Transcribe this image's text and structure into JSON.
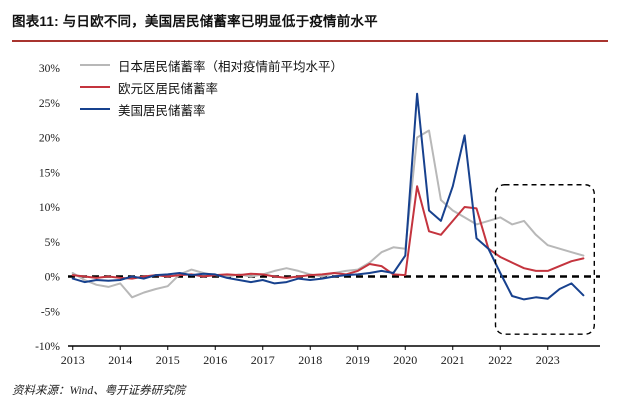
{
  "header": {
    "title": "图表11: 与日欧不同，美国居民储蓄率已明显低于疫情前水平"
  },
  "footer": {
    "source": "资料来源：Wind、粤开证券研究院"
  },
  "chart_data": {
    "type": "line",
    "title": "与日欧不同，美国居民储蓄率已明显低于疫情前水平",
    "xlabel": "",
    "ylabel": "",
    "ylim": [
      -10,
      30
    ],
    "grid": false,
    "legend_position": "top-left",
    "zero_line": true,
    "highlight_box": {
      "x0": 2021.9,
      "x1": 2023.98,
      "y0": -8.3,
      "y1": 13.2
    },
    "ytick_values": [
      30,
      25,
      20,
      15,
      10,
      5,
      0,
      -5,
      -10
    ],
    "ytick_labels": [
      "30%",
      "25%",
      "20%",
      "15%",
      "10%",
      "5%",
      "0%",
      "-5%",
      "-10%"
    ],
    "xtick_values": [
      2013,
      2014,
      2015,
      2016,
      2017,
      2018,
      2019,
      2020,
      2021,
      2022,
      2023
    ],
    "xtick_labels": [
      "2013",
      "2014",
      "2015",
      "2016",
      "2017",
      "2018",
      "2019",
      "2020",
      "2021",
      "2022",
      "2023"
    ],
    "x": [
      2013,
      2013.25,
      2013.5,
      2013.75,
      2014,
      2014.25,
      2014.5,
      2014.75,
      2015,
      2015.25,
      2015.5,
      2015.75,
      2016,
      2016.25,
      2016.5,
      2016.75,
      2017,
      2017.25,
      2017.5,
      2017.75,
      2018,
      2018.25,
      2018.5,
      2018.75,
      2019,
      2019.25,
      2019.5,
      2019.75,
      2020,
      2020.25,
      2020.5,
      2020.75,
      2021,
      2021.25,
      2021.5,
      2021.75,
      2022,
      2022.25,
      2022.5,
      2022.75,
      2023,
      2023.25,
      2023.5,
      2023.75
    ],
    "series": [
      {
        "name": "日本居民储蓄率（相对疫情前平均水平）",
        "color": "#b8b8b8",
        "values": [
          0.5,
          -0.5,
          -1.2,
          -1.5,
          -1.0,
          -3.0,
          -2.3,
          -1.8,
          -1.4,
          0.3,
          1.0,
          0.5,
          0.2,
          0.0,
          0.3,
          0.0,
          0.3,
          0.8,
          1.2,
          0.8,
          0.3,
          0.0,
          0.5,
          0.8,
          1.0,
          2.0,
          3.5,
          4.2,
          4.0,
          20.0,
          21.0,
          11.0,
          9.5,
          8.5,
          7.5,
          8.0,
          8.5,
          7.5,
          8.0,
          6.0,
          4.5,
          4.0,
          3.5,
          3.0
        ]
      },
      {
        "name": "欧元区居民储蓄率",
        "color": "#c4343e",
        "values": [
          0.2,
          0.0,
          -0.2,
          0.0,
          -0.2,
          -0.3,
          0.0,
          0.2,
          0.0,
          0.2,
          0.3,
          0.0,
          0.2,
          0.3,
          0.2,
          0.4,
          0.3,
          0.0,
          -0.2,
          0.0,
          0.2,
          0.3,
          0.5,
          0.3,
          0.8,
          1.8,
          1.5,
          0.3,
          0.2,
          13.0,
          6.5,
          6.0,
          8.0,
          10.0,
          9.8,
          4.0,
          2.8,
          2.0,
          1.2,
          0.8,
          0.8,
          1.5,
          2.2,
          2.6
        ]
      },
      {
        "name": "美国居民储蓄率",
        "color": "#17418e",
        "values": [
          -0.3,
          -0.8,
          -0.5,
          -0.6,
          -0.5,
          0.0,
          -0.3,
          0.2,
          0.3,
          0.5,
          0.2,
          0.4,
          0.3,
          -0.2,
          -0.5,
          -0.8,
          -0.5,
          -1.0,
          -0.8,
          -0.3,
          -0.5,
          -0.3,
          0.0,
          0.2,
          0.3,
          0.5,
          0.8,
          0.5,
          3.0,
          26.3,
          9.5,
          8.0,
          13.0,
          20.3,
          5.5,
          4.0,
          0.5,
          -2.8,
          -3.3,
          -3.0,
          -3.2,
          -1.8,
          -1.0,
          -2.7
        ]
      }
    ]
  }
}
